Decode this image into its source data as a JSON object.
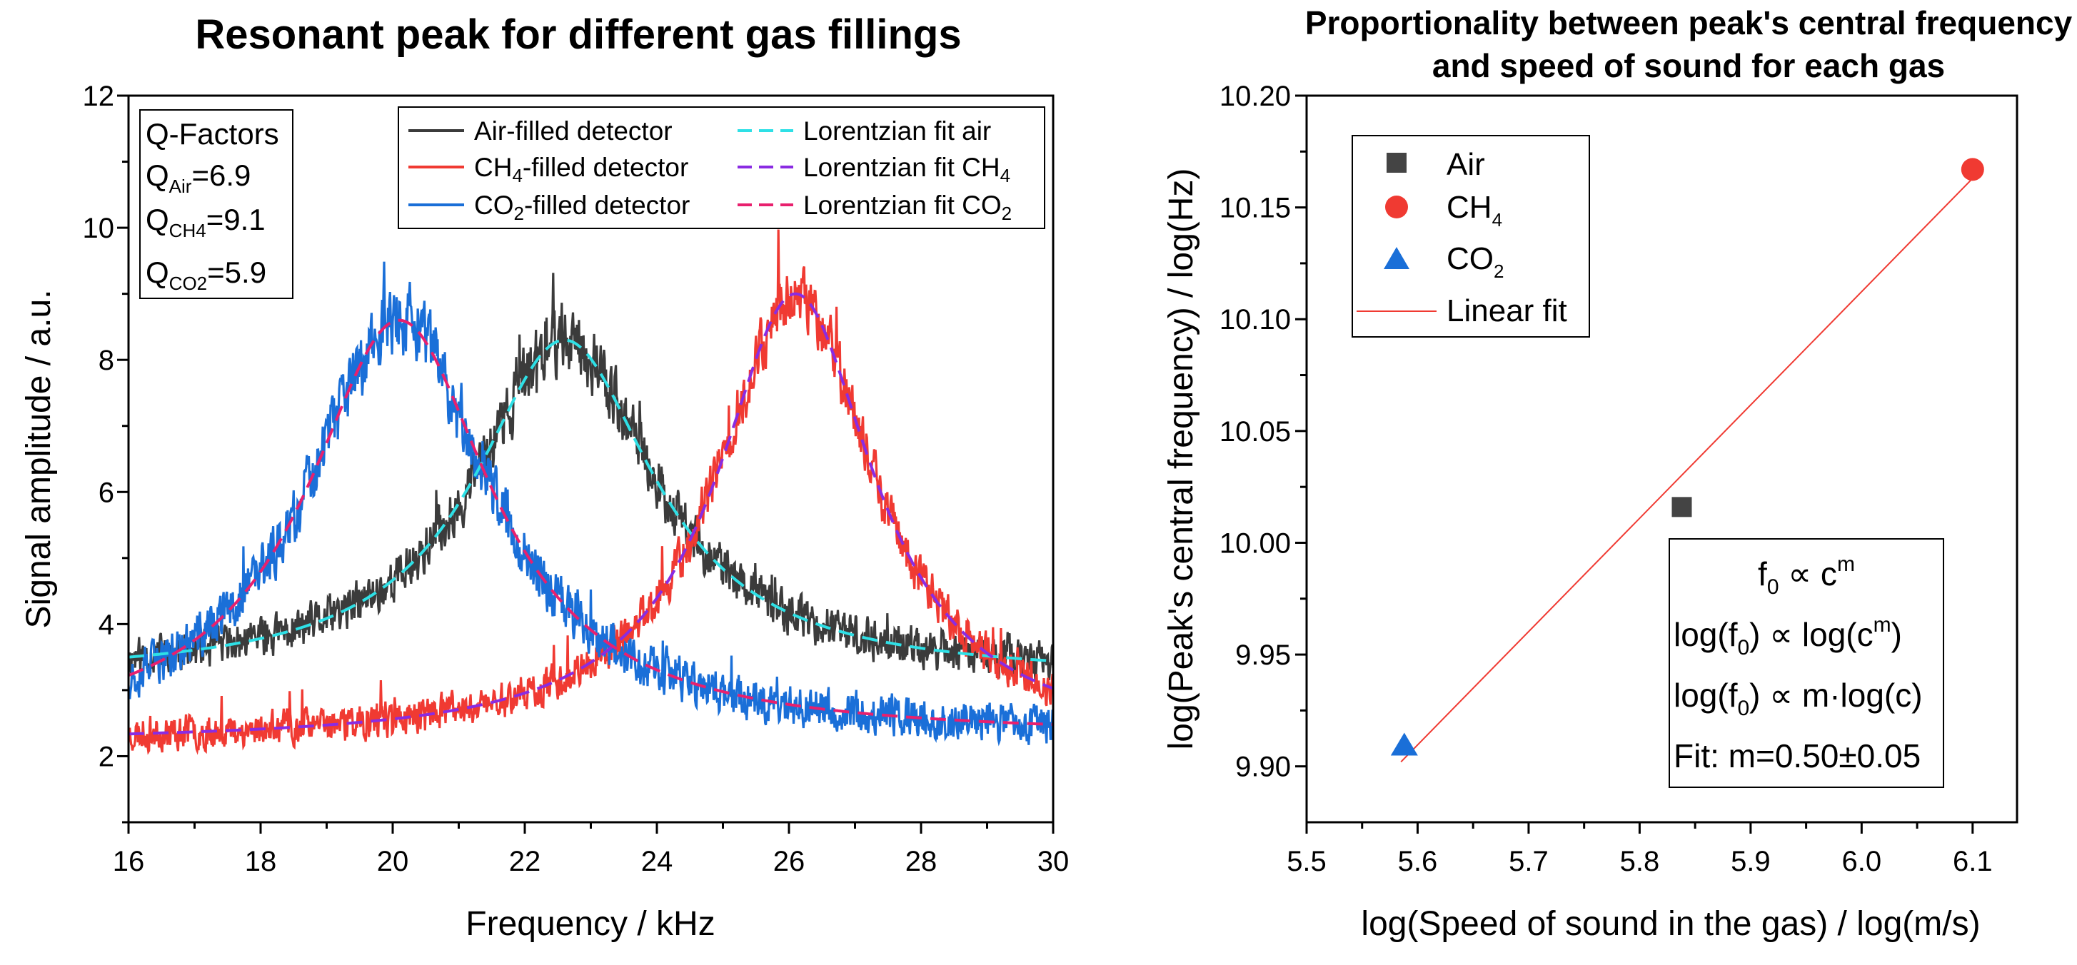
{
  "chart_data": [
    {
      "type": "line",
      "title": "Resonant peak for different gas fillings",
      "xlabel": "Frequency / kHz",
      "ylabel": "Signal amplitude / a.u.",
      "xlim": [
        16,
        30
      ],
      "ylim": [
        1,
        12
      ],
      "xticks": [
        "16",
        "18",
        "20",
        "22",
        "24",
        "26",
        "28",
        "30"
      ],
      "yticks": [
        "2",
        "4",
        "6",
        "8",
        "10",
        "12"
      ],
      "qbox": {
        "header": "Q-Factors",
        "items": [
          {
            "base": "Q",
            "sub": "Air",
            "value": "=6.9"
          },
          {
            "base": "Q",
            "sub": "CH4",
            "value": "=9.1"
          },
          {
            "base": "Q",
            "sub": "CO2",
            "value": "=5.9"
          }
        ]
      },
      "legend": {
        "position": "top-right",
        "items": [
          {
            "pre": "Air-filled detector",
            "sub": "",
            "post": "",
            "color": "#3b3b3b",
            "style": "solid"
          },
          {
            "pre": "CH",
            "sub": "4",
            "post": "-filled detector",
            "color": "#f03a32",
            "style": "solid"
          },
          {
            "pre": "CO",
            "sub": "2",
            "post": "-filled detector",
            "color": "#1a6fd8",
            "style": "solid"
          },
          {
            "pre": "Lorentzian fit air",
            "sub": "",
            "post": "",
            "color": "#2ee0e6",
            "style": "dashed"
          },
          {
            "pre": "Lorentzian fit CH",
            "sub": "4",
            "post": "",
            "color": "#8a2be2",
            "style": "dashed"
          },
          {
            "pre": "Lorentzian fit CO",
            "sub": "2",
            "post": "",
            "color": "#e8206e",
            "style": "dashed"
          }
        ]
      },
      "series": [
        {
          "name": "Air-filled detector",
          "kind": "noisy",
          "color": "#3b3b3b",
          "f0": 22.6,
          "gamma": 1.65,
          "baseline": 3.2,
          "peak": 8.3,
          "noise": 0.55,
          "seed": 11
        },
        {
          "name": "CH4-filled detector",
          "kind": "noisy",
          "color": "#f03a32",
          "f0": 26.1,
          "gamma": 1.45,
          "baseline": 2.2,
          "peak": 9.0,
          "noise": 0.5,
          "seed": 23
        },
        {
          "name": "CO2-filled detector",
          "kind": "noisy",
          "color": "#1a6fd8",
          "f0": 20.1,
          "gamma": 1.7,
          "baseline": 2.3,
          "peak": 8.6,
          "noise": 0.6,
          "seed": 37
        },
        {
          "name": "Lorentzian fit air",
          "kind": "fit",
          "color": "#2ee0e6",
          "f0": 22.6,
          "gamma": 1.65,
          "baseline": 3.2,
          "peak": 8.3
        },
        {
          "name": "Lorentzian fit CH4",
          "kind": "fit",
          "color": "#8a2be2",
          "f0": 26.1,
          "gamma": 1.45,
          "baseline": 2.2,
          "peak": 9.0
        },
        {
          "name": "Lorentzian fit CO2",
          "kind": "fit",
          "color": "#e8206e",
          "f0": 20.1,
          "gamma": 1.7,
          "baseline": 2.3,
          "peak": 8.6
        }
      ]
    },
    {
      "type": "scatter",
      "title_line1": "Proportionality between peak's central frequency",
      "title_line2": "and speed of sound for each gas",
      "xlabel": "log(Speed of sound in the gas) / log(m/s)",
      "ylabel": "log(Peak's central frequency) / log(Hz)",
      "xlim": [
        5.5,
        6.14
      ],
      "ylim": [
        9.875,
        10.2
      ],
      "xticks": [
        "5.5",
        "5.6",
        "5.7",
        "5.8",
        "5.9",
        "6.0",
        "6.1"
      ],
      "yticks": [
        "9.90",
        "9.95",
        "10.00",
        "10.05",
        "10.10",
        "10.15",
        "10.20"
      ],
      "points": [
        {
          "name": "Air",
          "x": 5.838,
          "y": 10.016,
          "marker": "square",
          "color": "#444444"
        },
        {
          "name": "CH4",
          "x": 6.1,
          "y": 10.167,
          "marker": "circle",
          "color": "#f03a32"
        },
        {
          "name": "CO2",
          "x": 5.588,
          "y": 9.909,
          "marker": "triangle",
          "color": "#1a6fd8"
        }
      ],
      "fit": {
        "name": "Linear fit",
        "x": [
          5.585,
          6.1
        ],
        "y": [
          9.902,
          10.163
        ],
        "color": "#f03a32"
      },
      "legend": {
        "position": "top-left",
        "items": [
          {
            "pre": "Air",
            "sub": ""
          },
          {
            "pre": "CH",
            "sub": "4"
          },
          {
            "pre": "CO",
            "sub": "2"
          },
          {
            "pre": "Linear fit",
            "sub": ""
          }
        ]
      },
      "equations": {
        "line1": {
          "a": "f",
          "a_sub": "0",
          "b": " ∝ c",
          "b_sup": "m"
        },
        "line2": {
          "a": "log(f",
          "a_sub": "0",
          "b": ") ∝ log(c",
          "b_sup": "m",
          "c": ")"
        },
        "line3": {
          "a": "log(f",
          "a_sub": "0",
          "b": ") ∝ m·log(c)"
        },
        "line4": "Fit: m=0.50±0.05"
      }
    }
  ]
}
